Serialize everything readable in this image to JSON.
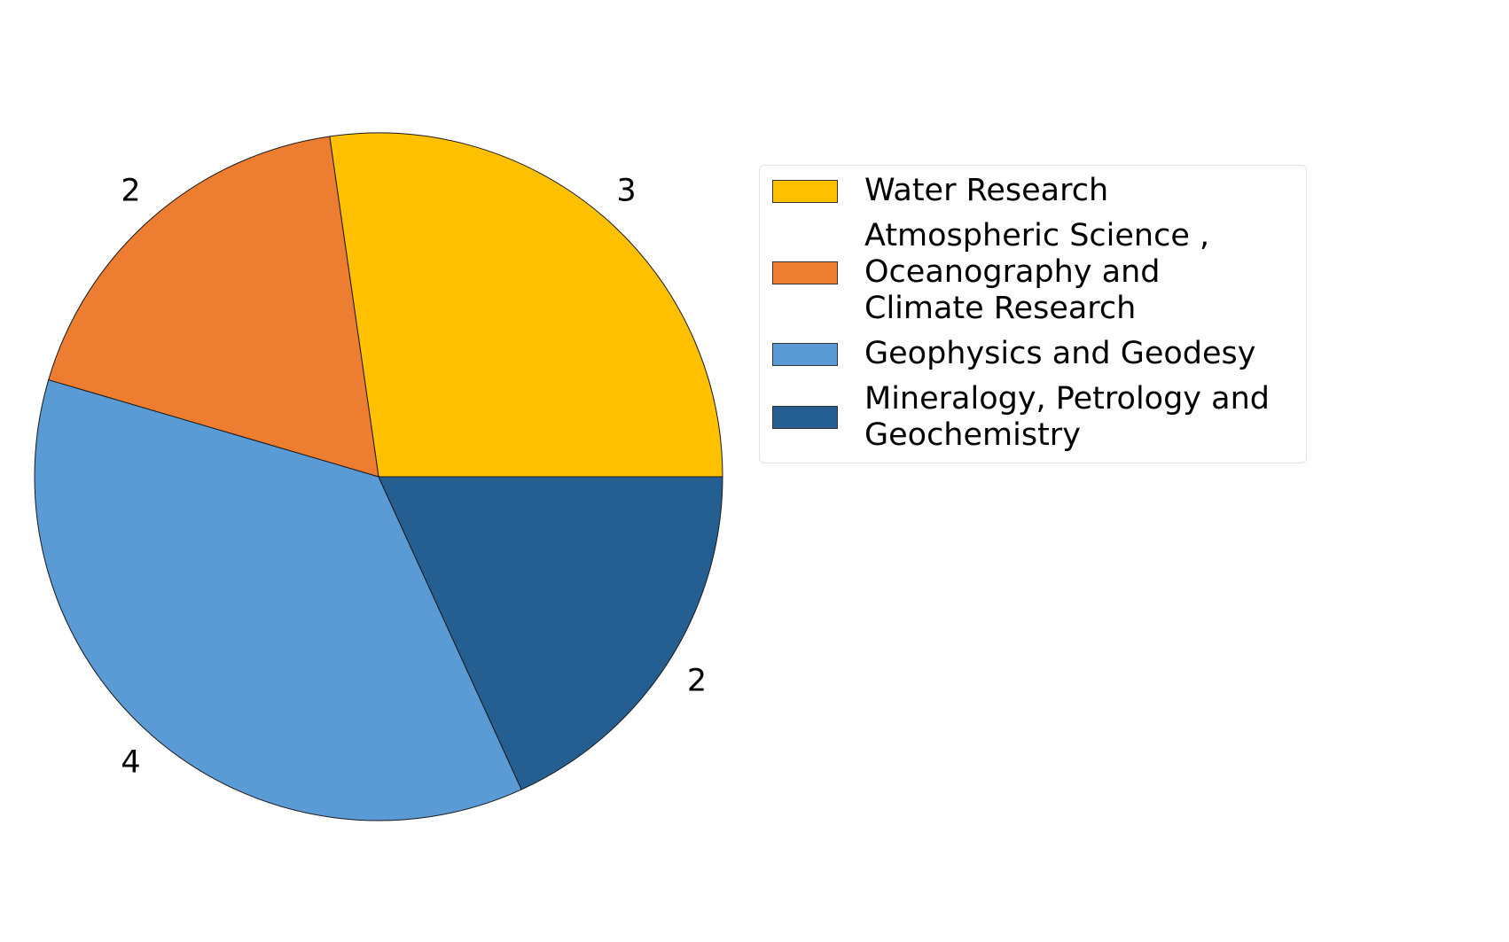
{
  "chart_data": {
    "type": "pie",
    "title": "",
    "start_angle_deg": 0,
    "direction": "counterclockwise",
    "slices": [
      {
        "label": "Water Research",
        "value": 3,
        "color": "#FFC000"
      },
      {
        "label": "Atmospheric Science ,\n Oceanography and\n Climate Research",
        "value": 2,
        "color": "#ED7D31"
      },
      {
        "label": "Geophysics and Geodesy",
        "value": 4,
        "color": "#5B9BD5"
      },
      {
        "label": "Mineralogy, Petrology and\n Geochemistry",
        "value": 2,
        "color": "#255E91"
      }
    ],
    "data_labels": [
      "3",
      "2",
      "4",
      "2"
    ],
    "legend_position": "right"
  }
}
